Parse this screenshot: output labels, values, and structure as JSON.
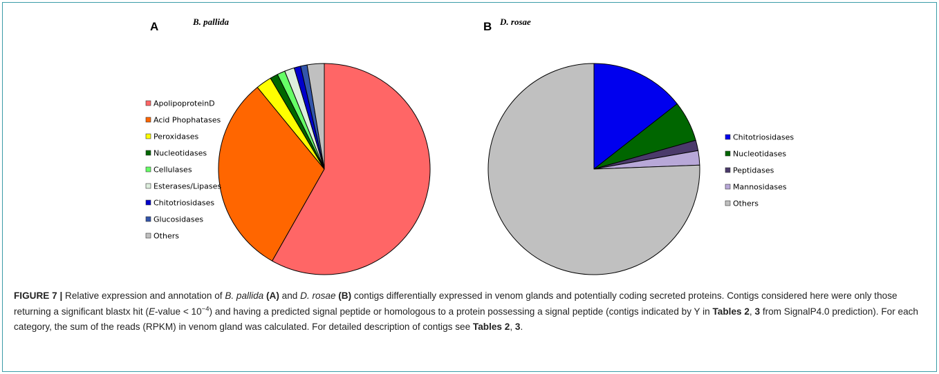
{
  "chart_data": [
    {
      "type": "pie",
      "panel": "A",
      "title": "B. pallida",
      "categories": [
        "ApolipoproteinD",
        "Acid Phophatases",
        "Peroxidases",
        "Nucleotidases",
        "Cellulases",
        "Esterases/Lipases",
        "Chitotriosidases",
        "Glucosidases",
        "Others"
      ],
      "values": [
        58.2,
        30.9,
        2.4,
        1.2,
        1.2,
        1.5,
        1.0,
        1.0,
        2.6
      ],
      "colors": [
        "#ff6666",
        "#ff6600",
        "#ffff00",
        "#006600",
        "#66ff66",
        "#ddeedd",
        "#0000cc",
        "#3355aa",
        "#c0c0c0"
      ],
      "legend": "left"
    },
    {
      "type": "pie",
      "panel": "B",
      "title": "D. rosae",
      "categories": [
        "Chitotriosidases",
        "Nucleotidases",
        "Peptidases",
        "Mannosidases",
        "Others"
      ],
      "values": [
        14.4,
        6.2,
        1.6,
        2.2,
        75.6
      ],
      "colors": [
        "#0000ee",
        "#006600",
        "#4b3a6b",
        "#b8a8d8",
        "#c0c0c0"
      ],
      "legend": "right"
    }
  ],
  "caption": {
    "label": "FIGURE 7 |",
    "t1": " Relative expression and annotation of ",
    "sp1": "B. pallida",
    "pa": "(A)",
    "t2": " and ",
    "sp2": "D. rosae",
    "pb": "(B)",
    "t3": " contigs differentially expressed in venom glands and potentially coding secreted proteins. Contigs considered here were only those returning a significant blastx hit (",
    "evar": "E",
    "t4": "-value < 10",
    "exp": "−4",
    "t5": ") and having a predicted signal peptide or homologous to a protein possessing a signal peptide (contigs indicated by Y in ",
    "tables1": "Tables 2",
    "t6": ", ",
    "num1": "3",
    "t7": " from SignalP4.0 prediction). For each category, the sum of the reads (RPKM) in venom gland was calculated. For detailed description of contigs see ",
    "tables2": "Tables 2",
    "t8": ", ",
    "num2": "3",
    "t9": "."
  }
}
